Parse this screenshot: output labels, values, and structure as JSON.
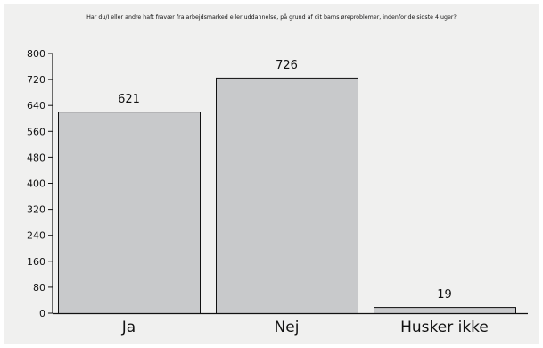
{
  "chart_data": {
    "type": "bar",
    "title": "Har du/I eller andre haft fravær fra arbejdsmarked eller uddannelse, på grund af dit barns øreproblemer, indenfor de sidste 4 uger?",
    "categories": [
      "Ja",
      "Nej",
      "Husker ikke"
    ],
    "values": [
      621,
      726,
      19
    ],
    "data_labels": [
      "621",
      "726",
      "19"
    ],
    "ylim": [
      0,
      800
    ],
    "yticks": [
      0,
      80,
      160,
      240,
      320,
      400,
      480,
      560,
      640,
      720,
      800
    ],
    "ytick_labels": [
      "0",
      "80",
      "160",
      "240",
      "320",
      "400",
      "480",
      "560",
      "640",
      "720",
      "800"
    ],
    "xlabel": "",
    "ylabel": "",
    "grid": false,
    "legend": "none",
    "colors": {
      "bar_fill": "#c8c9cb",
      "bar_stroke": "#111111",
      "axis": "#111111",
      "background": "#f0f0ef"
    }
  }
}
